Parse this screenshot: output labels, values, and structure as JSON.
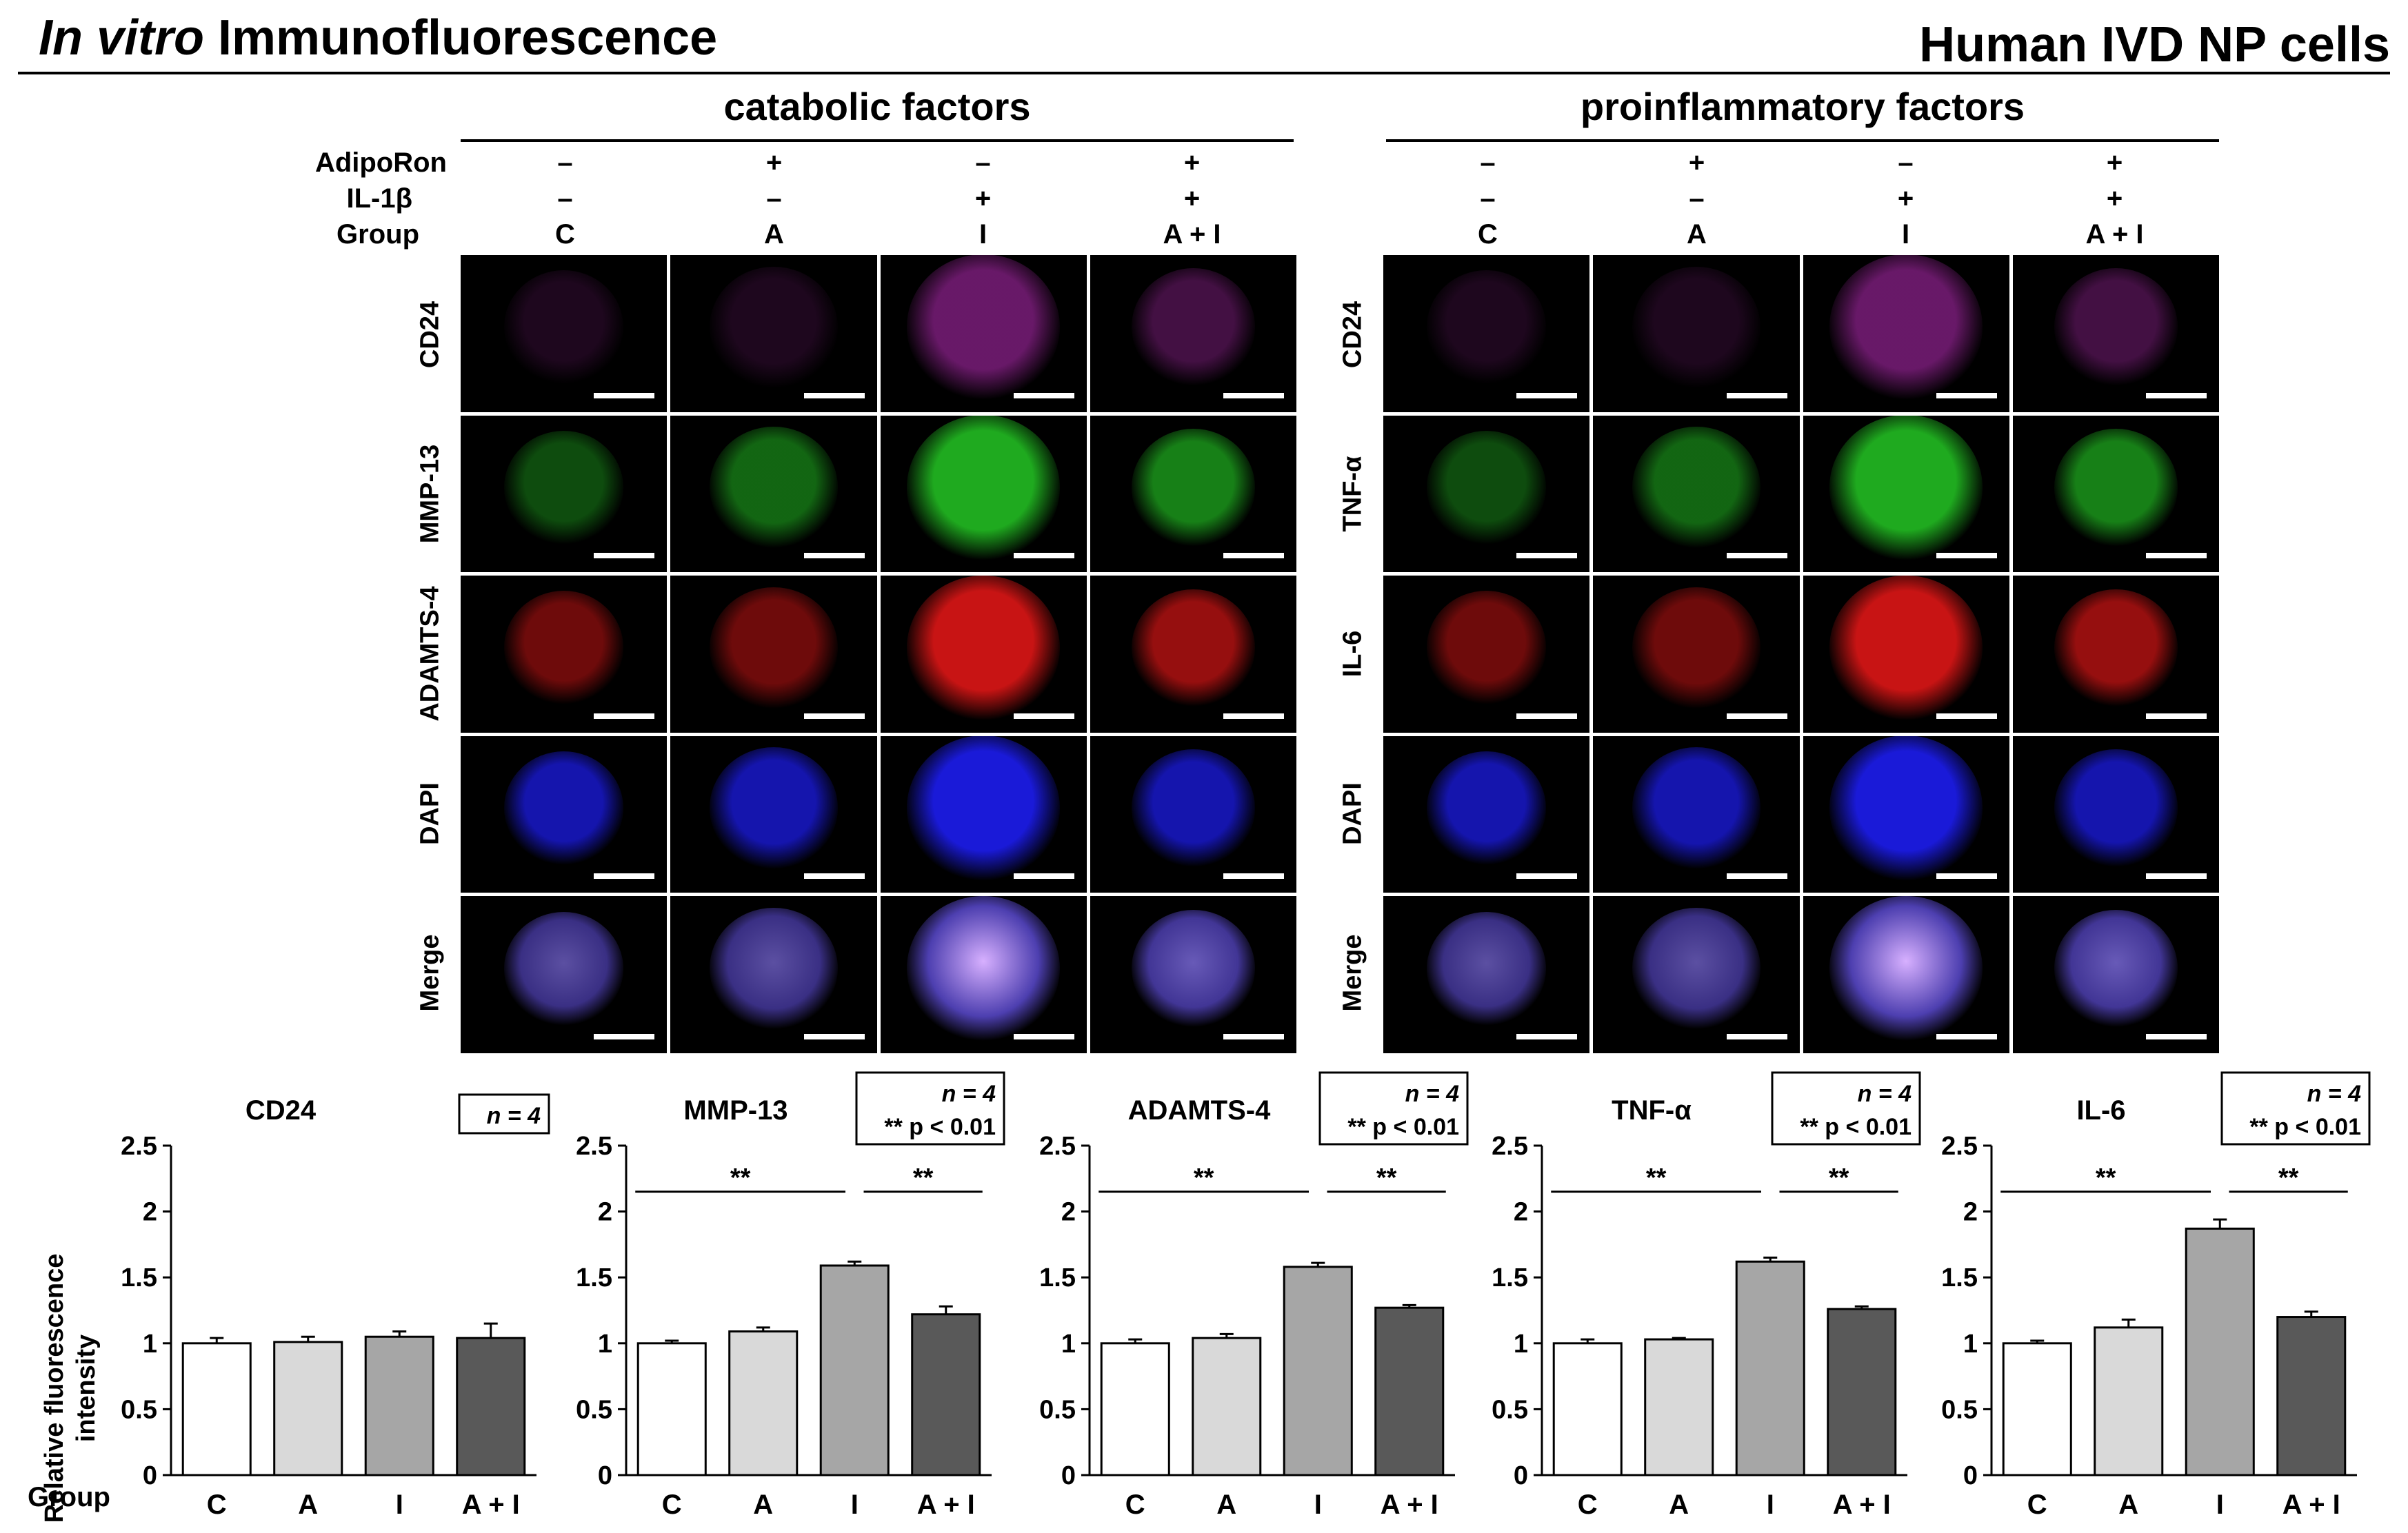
{
  "header": {
    "title_italic": "In vitro",
    "title_rest": "Immunofluorescence",
    "title_right": "Human IVD NP cells"
  },
  "conditions": {
    "labels": [
      "AdipoRon",
      "IL-1β",
      "Group"
    ],
    "adiporon": [
      "–",
      "+",
      "–",
      "+"
    ],
    "il1b": [
      "–",
      "–",
      "+",
      "+"
    ],
    "groups": [
      "C",
      "A",
      "I",
      "A + I"
    ]
  },
  "panels": [
    {
      "title": "catabolic factors",
      "rows": [
        "CD24",
        "MMP-13",
        "ADAMTS-4",
        "DAPI",
        "Merge"
      ]
    },
    {
      "title": "proinflammatory factors",
      "rows": [
        "CD24",
        "TNF-α",
        "IL-6",
        "DAPI",
        "Merge"
      ]
    }
  ],
  "image_colors": {
    "CD24": "#7a1d7a",
    "MMP-13": "#1faa1f",
    "ADAMTS-4": "#c81414",
    "DAPI": "#1a1ad8",
    "Merge": "#5a4ab8"
  },
  "bar_colors": [
    "#ffffff",
    "#d9d9d9",
    "#a6a6a6",
    "#595959"
  ],
  "group_label": "Group",
  "chart_data": [
    {
      "type": "bar",
      "title": "CD24",
      "n_text": "n = 4",
      "p_text": "",
      "ylabel": "Relative fluorescence intensity",
      "categories": [
        "C",
        "A",
        "I",
        "A + I"
      ],
      "values": [
        1.0,
        1.01,
        1.05,
        1.04
      ],
      "errors": [
        0.04,
        0.04,
        0.04,
        0.11
      ],
      "ylim": [
        0,
        2.5
      ],
      "yticks": [
        "0",
        "0.5",
        "1",
        "1.5",
        "2",
        "2.5"
      ],
      "significance": []
    },
    {
      "type": "bar",
      "title": "MMP-13",
      "n_text": "n = 4",
      "p_text": "** p < 0.01",
      "ylabel": "",
      "categories": [
        "C",
        "A",
        "I",
        "A + I"
      ],
      "values": [
        1.0,
        1.09,
        1.59,
        1.22
      ],
      "errors": [
        0.02,
        0.03,
        0.03,
        0.06
      ],
      "ylim": [
        0,
        2.5
      ],
      "yticks": [
        "0",
        "0.5",
        "1",
        "1.5",
        "2",
        "2.5"
      ],
      "significance": [
        {
          "from": 0,
          "to": 2,
          "label": "**"
        },
        {
          "from": 2,
          "to": 3,
          "label": "**"
        }
      ]
    },
    {
      "type": "bar",
      "title": "ADAMTS-4",
      "n_text": "n = 4",
      "p_text": "** p < 0.01",
      "ylabel": "",
      "categories": [
        "C",
        "A",
        "I",
        "A + I"
      ],
      "values": [
        1.0,
        1.04,
        1.58,
        1.27
      ],
      "errors": [
        0.03,
        0.03,
        0.03,
        0.02
      ],
      "ylim": [
        0,
        2.5
      ],
      "yticks": [
        "0",
        "0.5",
        "1",
        "1.5",
        "2",
        "2.5"
      ],
      "significance": [
        {
          "from": 0,
          "to": 2,
          "label": "**"
        },
        {
          "from": 2,
          "to": 3,
          "label": "**"
        }
      ]
    },
    {
      "type": "bar",
      "title": "TNF-α",
      "n_text": "n = 4",
      "p_text": "** p < 0.01",
      "ylabel": "",
      "categories": [
        "C",
        "A",
        "I",
        "A + I"
      ],
      "values": [
        1.0,
        1.03,
        1.62,
        1.26
      ],
      "errors": [
        0.03,
        0.01,
        0.03,
        0.02
      ],
      "ylim": [
        0,
        2.5
      ],
      "yticks": [
        "0",
        "0.5",
        "1",
        "1.5",
        "2",
        "2.5"
      ],
      "significance": [
        {
          "from": 0,
          "to": 2,
          "label": "**"
        },
        {
          "from": 2,
          "to": 3,
          "label": "**"
        }
      ]
    },
    {
      "type": "bar",
      "title": "IL-6",
      "n_text": "n = 4",
      "p_text": "** p < 0.01",
      "ylabel": "",
      "categories": [
        "C",
        "A",
        "I",
        "A + I"
      ],
      "values": [
        1.0,
        1.12,
        1.87,
        1.2
      ],
      "errors": [
        0.02,
        0.06,
        0.07,
        0.04
      ],
      "ylim": [
        0,
        2.5
      ],
      "yticks": [
        "0",
        "0.5",
        "1",
        "1.5",
        "2",
        "2.5"
      ],
      "significance": [
        {
          "from": 0,
          "to": 2,
          "label": "**"
        },
        {
          "from": 2,
          "to": 3,
          "label": "**"
        }
      ]
    }
  ]
}
